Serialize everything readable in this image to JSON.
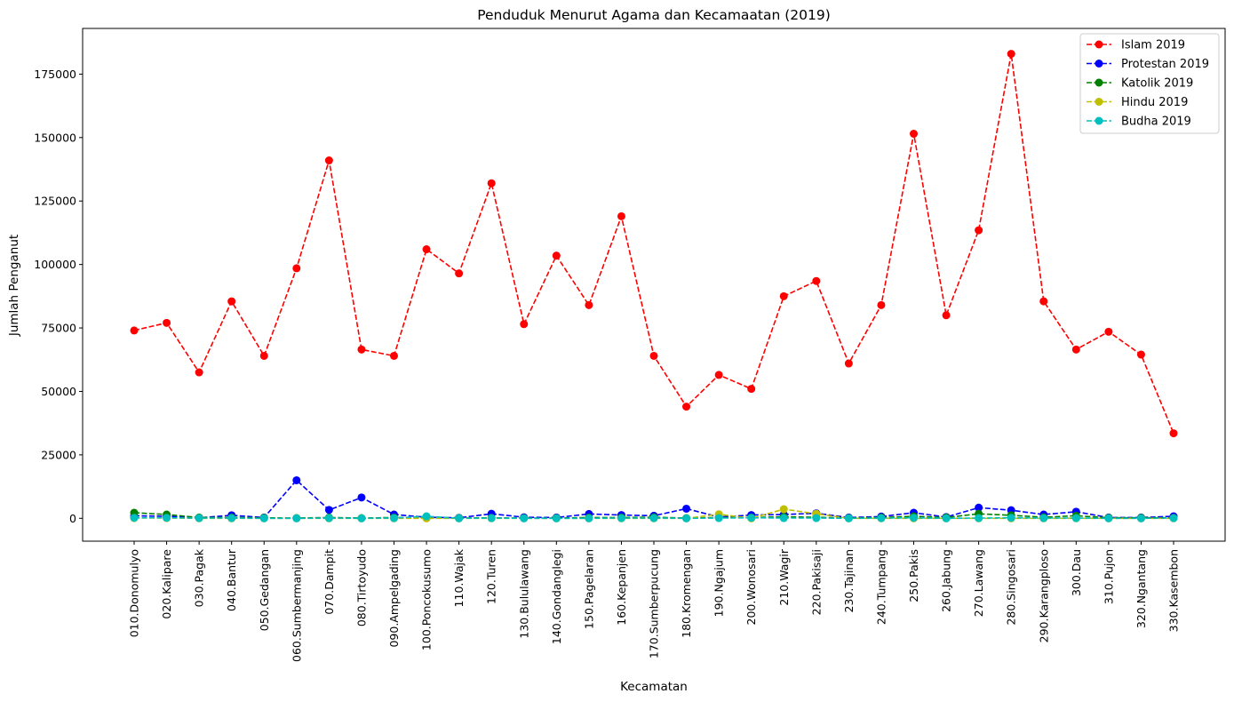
{
  "chart_data": {
    "type": "line",
    "title": "Penduduk Menurut Agama dan Kecamaatan (2019)",
    "xlabel": "Kecamatan",
    "ylabel": "Jumlah Penganut",
    "ylim": [
      -9000,
      193000
    ],
    "yticks": [
      0,
      25000,
      50000,
      75000,
      100000,
      125000,
      150000,
      175000
    ],
    "ytick_labels": [
      "0",
      "25000",
      "50000",
      "75000",
      "100000",
      "125000",
      "150000",
      "175000"
    ],
    "grid": false,
    "legend_position": "top-right",
    "categories": [
      "010.Donomulyo",
      "020.Kalipare",
      "030.Pagak",
      "040.Bantur",
      "050.Gedangan",
      "060.Sumbermanjing",
      "070.Dampit",
      "080.Tirtoyudo",
      "090.Ampelgading",
      "100.Poncokusumo",
      "110.Wajak",
      "120.Turen",
      "130.Bululawang",
      "140.Gondanglegi",
      "150.Pagelaran",
      "160.Kepanjen",
      "170.Sumberpucung",
      "180.Kromengan",
      "190.Ngajum",
      "200.Wonosari",
      "210.Wagir",
      "220.Pakisaji",
      "230.Tajinan",
      "240.Tumpang",
      "250.Pakis",
      "260.Jabung",
      "270.Lawang",
      "280.Singosari",
      "290.Karangploso",
      "300.Dau",
      "310.Pujon",
      "320.Ngantang",
      "330.Kasembon"
    ],
    "series": [
      {
        "name": "Islam 2019",
        "color": "#ff0000",
        "values": [
          74000,
          77000,
          57500,
          85500,
          64000,
          98500,
          141000,
          66500,
          64000,
          106000,
          96500,
          132000,
          76500,
          103500,
          84000,
          119000,
          64000,
          44000,
          56500,
          51000,
          87500,
          93500,
          61000,
          84000,
          151500,
          80000,
          113500,
          183000,
          85500,
          66500,
          73500,
          64500,
          33500
        ]
      },
      {
        "name": "Protestan 2019",
        "color": "#0000ff",
        "values": [
          1000,
          800,
          200,
          1200,
          300,
          15000,
          3300,
          8200,
          1500,
          400,
          200,
          1800,
          400,
          300,
          1700,
          1300,
          1000,
          3800,
          500,
          1300,
          1500,
          2000,
          300,
          700,
          2200,
          500,
          4200,
          3200,
          1500,
          2600,
          300,
          300,
          800
        ]
      },
      {
        "name": "Katolik 2019",
        "color": "#008000",
        "values": [
          2200,
          1500,
          300,
          300,
          200,
          100,
          300,
          100,
          300,
          100,
          100,
          200,
          100,
          100,
          300,
          300,
          400,
          100,
          300,
          300,
          600,
          400,
          100,
          300,
          800,
          300,
          1800,
          1200,
          400,
          1000,
          200,
          200,
          200
        ]
      },
      {
        "name": "Hindu 2019",
        "color": "#bfbf00",
        "values": [
          100,
          100,
          0,
          0,
          0,
          0,
          0,
          0,
          0,
          0,
          0,
          0,
          0,
          0,
          0,
          0,
          0,
          0,
          1600,
          0,
          3600,
          1800,
          0,
          0,
          0,
          0,
          0,
          0,
          0,
          0,
          0,
          0,
          0
        ]
      },
      {
        "name": "Budha 2019",
        "color": "#00bfbf",
        "values": [
          200,
          200,
          100,
          100,
          0,
          0,
          100,
          0,
          100,
          800,
          0,
          100,
          0,
          0,
          0,
          100,
          100,
          0,
          100,
          200,
          100,
          100,
          0,
          100,
          200,
          0,
          100,
          200,
          100,
          100,
          0,
          0,
          100
        ]
      }
    ]
  }
}
